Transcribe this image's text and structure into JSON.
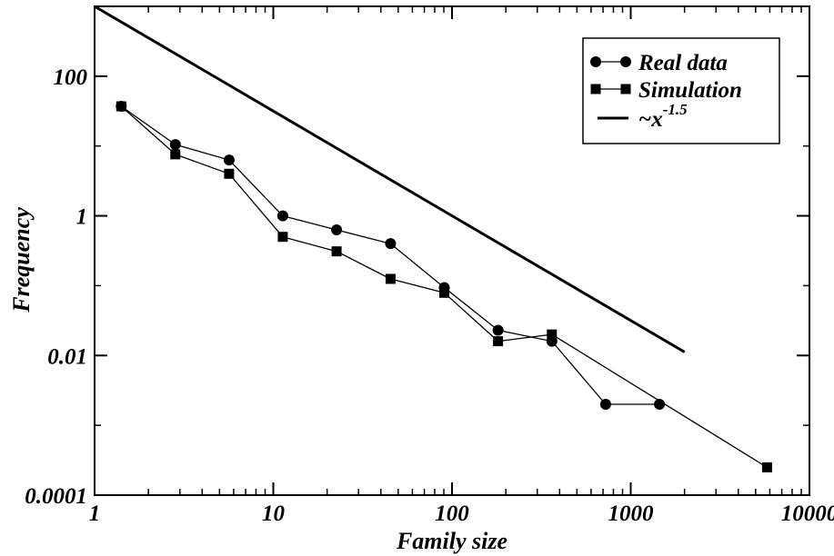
{
  "chart_data": {
    "type": "line",
    "xscale": "log",
    "yscale": "log",
    "xlim": [
      1,
      10000
    ],
    "ylim": [
      0.0001,
      1000
    ],
    "xlabel": "Family size",
    "ylabel": "Frequency",
    "x_ticks": [
      {
        "value": 1,
        "label": "1"
      },
      {
        "value": 10,
        "label": "10"
      },
      {
        "value": 100,
        "label": "100"
      },
      {
        "value": 1000,
        "label": "1000"
      },
      {
        "value": 10000,
        "label": "10000"
      }
    ],
    "y_ticks": [
      {
        "value": 0.0001,
        "label": "0.0001"
      },
      {
        "value": 0.01,
        "label": "0.01"
      },
      {
        "value": 1,
        "label": "1"
      },
      {
        "value": 100,
        "label": "100"
      }
    ],
    "grid": false,
    "legend_position": "top-right",
    "series": [
      {
        "name": "Real data",
        "marker": "circle",
        "x": [
          1.41,
          2.83,
          5.66,
          11.3,
          22.6,
          45.3,
          90.5,
          181,
          362,
          724,
          1448
        ],
        "y": [
          37,
          10.5,
          6.3,
          1.0,
          0.63,
          0.4,
          0.094,
          0.023,
          0.016,
          0.002,
          0.002
        ]
      },
      {
        "name": "Simulation",
        "marker": "square",
        "x": [
          1.41,
          2.83,
          5.66,
          11.3,
          22.6,
          45.3,
          90.5,
          181,
          362,
          5793
        ],
        "y": [
          37,
          7.6,
          4.0,
          0.5,
          0.31,
          0.125,
          0.079,
          0.016,
          0.02,
          0.00025
        ]
      },
      {
        "name": "~x",
        "superscript": "-1.5",
        "marker": "none",
        "x": [
          1,
          2000
        ],
        "y": [
          1000,
          0.0112
        ]
      }
    ]
  }
}
